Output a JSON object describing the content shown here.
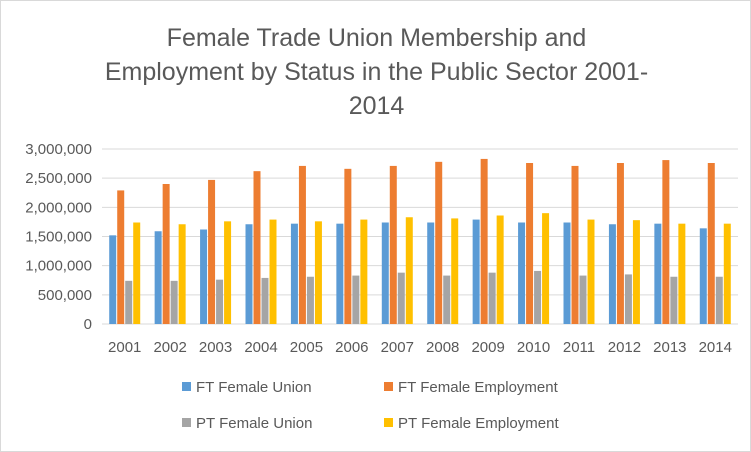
{
  "chart_data": {
    "type": "bar",
    "title_lines": [
      "Female Trade Union Membership and",
      "Employment by Status in the Public Sector 2001-",
      "2014"
    ],
    "categories": [
      "2001",
      "2002",
      "2003",
      "2004",
      "2005",
      "2006",
      "2007",
      "2008",
      "2009",
      "2010",
      "2011",
      "2012",
      "2013",
      "2014"
    ],
    "ylim": [
      0,
      3000000
    ],
    "yticks": [
      0,
      500000,
      1000000,
      1500000,
      2000000,
      2500000,
      3000000
    ],
    "ytick_labels": [
      "0",
      "500,000",
      "1,000,000",
      "1,500,000",
      "2,000,000",
      "2,500,000",
      "3,000,000"
    ],
    "grid": true,
    "legend_position": "bottom",
    "series": [
      {
        "name": "FT Female Union",
        "color": "#5b9bd5",
        "values": [
          1520000,
          1590000,
          1620000,
          1710000,
          1720000,
          1720000,
          1740000,
          1740000,
          1790000,
          1740000,
          1740000,
          1710000,
          1720000,
          1640000
        ]
      },
      {
        "name": "FT Female Employment",
        "color": "#ed7d31",
        "values": [
          2290000,
          2400000,
          2470000,
          2620000,
          2710000,
          2660000,
          2710000,
          2780000,
          2830000,
          2760000,
          2710000,
          2760000,
          2810000,
          2760000
        ]
      },
      {
        "name": "PT Female Union",
        "color": "#a5a5a5",
        "values": [
          740000,
          740000,
          760000,
          790000,
          810000,
          830000,
          880000,
          830000,
          880000,
          910000,
          830000,
          850000,
          810000,
          810000
        ]
      },
      {
        "name": "PT Female Employment",
        "color": "#ffc000",
        "values": [
          1740000,
          1710000,
          1760000,
          1790000,
          1760000,
          1790000,
          1830000,
          1810000,
          1860000,
          1900000,
          1790000,
          1780000,
          1720000,
          1720000
        ]
      }
    ]
  }
}
